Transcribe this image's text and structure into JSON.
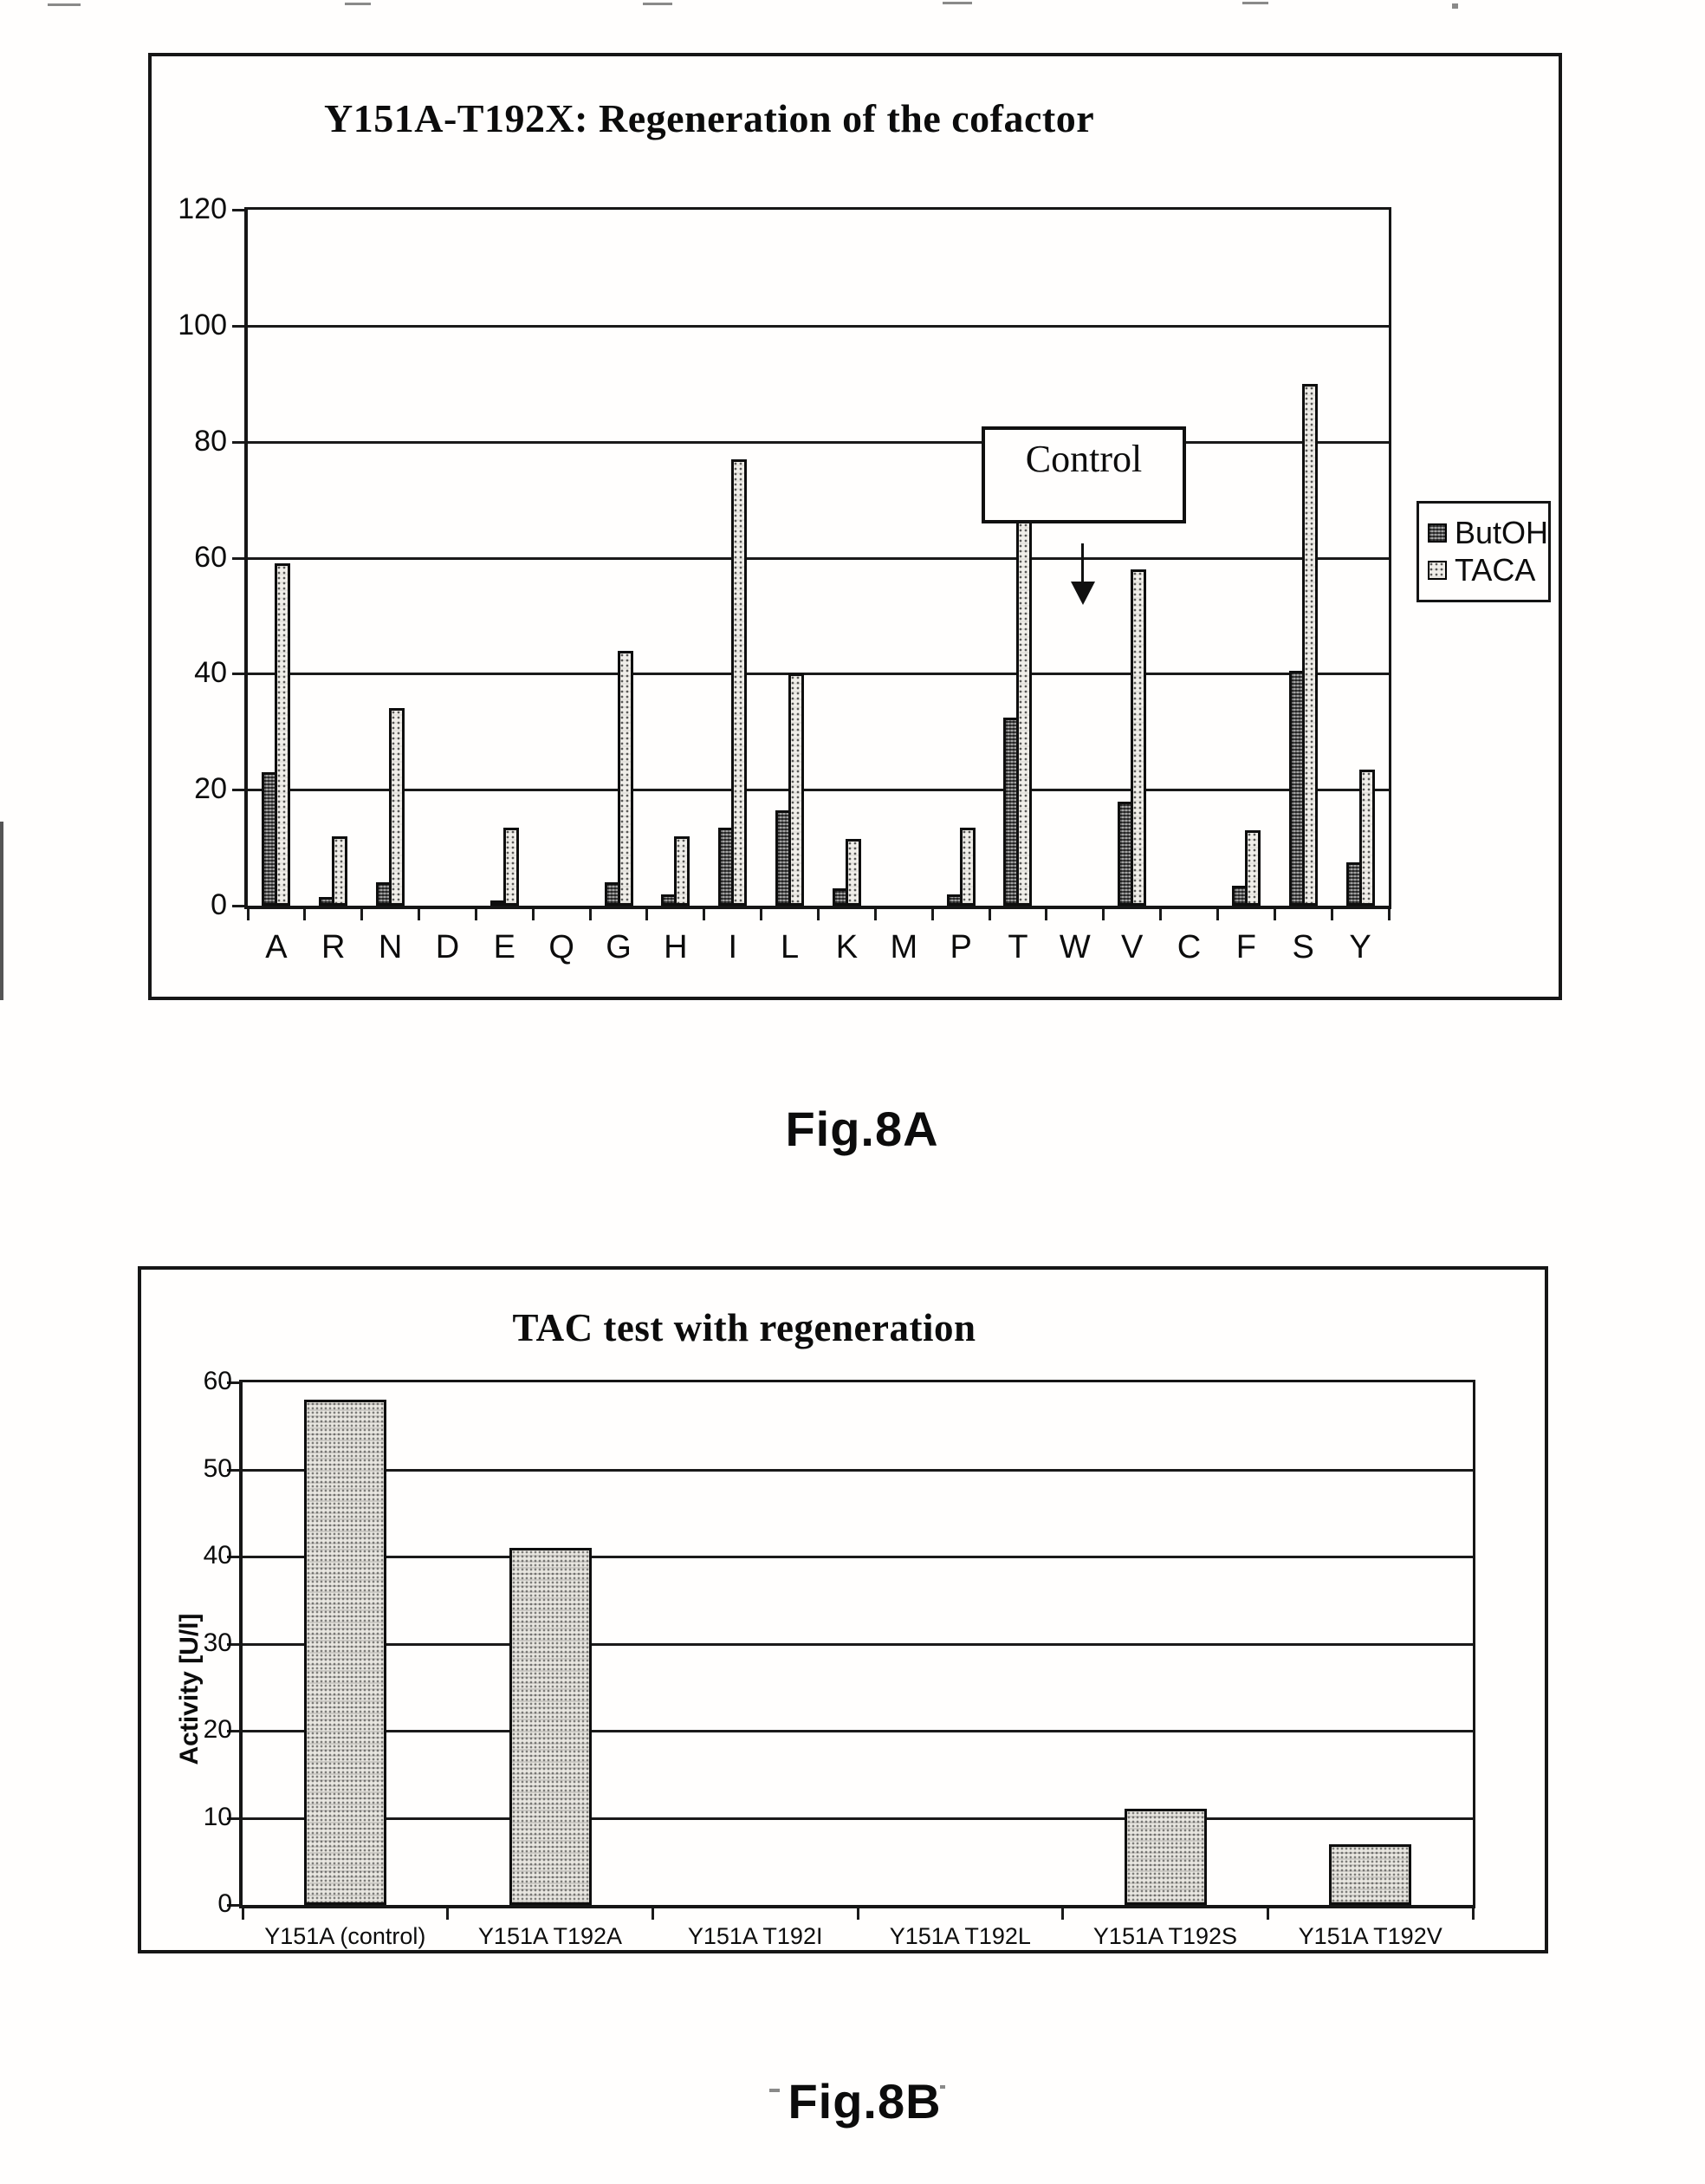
{
  "colors": {
    "ink": "#161616",
    "paper": "#fffefd"
  },
  "captions": {
    "fig_a": "Fig.8A",
    "fig_b": "Fig.8B"
  },
  "chart_data": [
    {
      "id": "fig8a",
      "type": "bar",
      "title": "Y151A-T192X: Regeneration of the cofactor",
      "categories": [
        "A",
        "R",
        "N",
        "D",
        "E",
        "Q",
        "G",
        "H",
        "I",
        "L",
        "K",
        "M",
        "P",
        "T",
        "W",
        "V",
        "C",
        "F",
        "S",
        "Y"
      ],
      "series": [
        {
          "name": "ButOH",
          "values": [
            23,
            1.5,
            4,
            0,
            0.5,
            0,
            4,
            2,
            13.5,
            16.5,
            3,
            0,
            2,
            32.5,
            0,
            18,
            0,
            3.5,
            40.5,
            7.5
          ]
        },
        {
          "name": "TACA",
          "values": [
            59,
            12,
            34,
            0,
            13.5,
            0,
            44,
            12,
            77,
            40,
            11.5,
            0,
            13.5,
            78,
            0,
            58,
            0,
            13,
            90,
            23.5
          ]
        }
      ],
      "xlabel": "",
      "ylabel": "",
      "ylim": [
        0,
        120
      ],
      "yticks": [
        0,
        20,
        40,
        60,
        80,
        100,
        120
      ],
      "grid": true,
      "legend_position": "right-outside",
      "annotation": {
        "text": "Control",
        "arrow": "points-down-near-T-W",
        "t_taca_bar_top": "hidden behind Control box (>66)"
      }
    },
    {
      "id": "fig8b",
      "type": "bar",
      "title": "TAC test with regeneration",
      "categories": [
        "Y151A (control)",
        "Y151A T192A",
        "Y151A T192I",
        "Y151A T192L",
        "Y151A T192S",
        "Y151A T192V"
      ],
      "values": [
        58,
        41,
        0,
        0,
        11,
        7
      ],
      "xlabel": "",
      "ylabel": "Activity [U/l]",
      "ylim": [
        0,
        60
      ],
      "yticks": [
        0,
        10,
        20,
        30,
        40,
        50,
        60
      ],
      "grid": true,
      "legend_position": "none"
    }
  ]
}
